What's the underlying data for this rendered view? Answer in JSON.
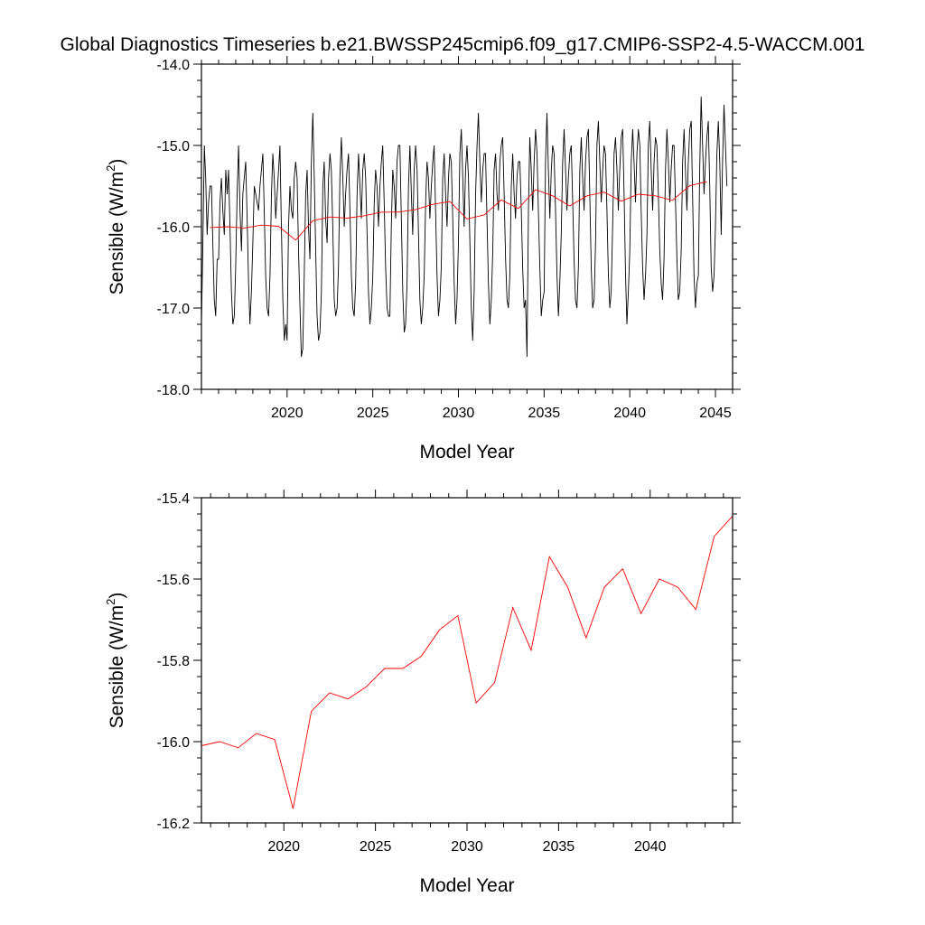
{
  "figure": {
    "title": "Global Diagnostics Timeseries b.e21.BWSSP245cmip6.f09_g17.CMIP6-SSP2-4.5-WACCM.001"
  },
  "chart_data": [
    {
      "type": "line",
      "xlabel": "Model Year",
      "ylabel": {
        "prefix": "Sensible (W/m",
        "superscript": "2",
        "suffix": ")"
      },
      "xlim": [
        2015,
        2046
      ],
      "ylim": [
        -18.0,
        -14.0
      ],
      "x_ticks": [
        "2020",
        "2025",
        "2030",
        "2035",
        "2040",
        "2045"
      ],
      "y_ticks": [
        "-18.0",
        "-17.0",
        "-16.0",
        "-15.0",
        "-14.0"
      ],
      "grid": false,
      "series": [
        {
          "color": "#000000",
          "start_year": 2015,
          "step": "monthly",
          "values": [
            -17.2,
            -16.2,
            -15.0,
            -15.4,
            -16.1,
            -15.7,
            -15.5,
            -15.5,
            -16.2,
            -16.9,
            -17.1,
            -16.4,
            -16.4,
            -15.7,
            -15.4,
            -15.8,
            -16.1,
            -15.3,
            -15.6,
            -15.3,
            -16.0,
            -16.8,
            -17.2,
            -17.1,
            -16.5,
            -15.6,
            -15.0,
            -15.8,
            -16.3,
            -15.6,
            -15.4,
            -15.2,
            -15.9,
            -16.7,
            -17.2,
            -16.8,
            -16.2,
            -15.5,
            -15.6,
            -15.7,
            -15.8,
            -15.5,
            -15.3,
            -15.1,
            -15.8,
            -16.6,
            -17.0,
            -17.1,
            -16.6,
            -15.6,
            -15.1,
            -15.4,
            -15.9,
            -15.6,
            -15.3,
            -15.0,
            -16.0,
            -16.9,
            -17.4,
            -17.2,
            -17.4,
            -16.0,
            -15.5,
            -15.8,
            -15.9,
            -15.4,
            -15.2,
            -15.4,
            -16.3,
            -17.0,
            -17.6,
            -17.5,
            -16.6,
            -15.6,
            -15.3,
            -16.0,
            -16.4,
            -15.2,
            -14.6,
            -15.4,
            -16.3,
            -17.1,
            -17.4,
            -17.3,
            -16.8,
            -15.5,
            -15.2,
            -15.9,
            -16.2,
            -15.4,
            -15.1,
            -15.3,
            -16.0,
            -16.9,
            -17.1,
            -17.0,
            -16.5,
            -15.4,
            -14.9,
            -15.4,
            -16.0,
            -15.6,
            -15.3,
            -15.1,
            -15.8,
            -16.6,
            -17.0,
            -17.1,
            -16.7,
            -15.6,
            -15.1,
            -15.5,
            -15.9,
            -15.3,
            -15.1,
            -15.4,
            -16.1,
            -16.8,
            -17.2,
            -17.0,
            -16.6,
            -15.7,
            -15.3,
            -15.5,
            -16.0,
            -15.5,
            -15.2,
            -15.0,
            -15.7,
            -16.5,
            -17.0,
            -17.1,
            -17.1,
            -16.0,
            -15.3,
            -15.5,
            -15.9,
            -15.2,
            -15.0,
            -15.0,
            -15.9,
            -16.8,
            -17.3,
            -17.2,
            -16.7,
            -15.5,
            -15.0,
            -15.6,
            -16.1,
            -15.3,
            -15.0,
            -15.3,
            -16.1,
            -16.9,
            -17.2,
            -17.0,
            -16.6,
            -15.7,
            -15.2,
            -15.4,
            -15.9,
            -15.5,
            -15.2,
            -15.0,
            -15.8,
            -16.6,
            -17.1,
            -16.9,
            -16.5,
            -15.4,
            -15.1,
            -15.6,
            -16.0,
            -15.4,
            -15.1,
            -15.2,
            -15.9,
            -16.7,
            -17.2,
            -16.9,
            -16.2,
            -15.1,
            -14.8,
            -15.4,
            -16.0,
            -15.3,
            -15.0,
            -15.4,
            -16.2,
            -17.0,
            -17.4,
            -16.8,
            -15.6,
            -15.0,
            -14.6,
            -15.2,
            -15.7,
            -15.3,
            -15.1,
            -15.1,
            -15.9,
            -16.7,
            -17.2,
            -16.9,
            -16.3,
            -15.3,
            -15.1,
            -15.6,
            -15.8,
            -15.2,
            -15.0,
            -14.9,
            -15.6,
            -16.4,
            -16.9,
            -17.0,
            -16.6,
            -15.5,
            -15.1,
            -15.6,
            -15.9,
            -15.4,
            -15.2,
            -15.2,
            -15.8,
            -16.5,
            -17.0,
            -16.9,
            -17.6,
            -15.8,
            -14.9,
            -15.3,
            -15.8,
            -15.2,
            -14.8,
            -15.1,
            -15.8,
            -16.5,
            -17.1,
            -16.9,
            -16.8,
            -15.2,
            -14.6,
            -15.3,
            -15.9,
            -15.3,
            -15.0,
            -15.1,
            -15.8,
            -16.6,
            -17.1,
            -16.7,
            -16.1,
            -15.2,
            -14.8,
            -15.3,
            -15.8,
            -15.4,
            -15.1,
            -15.0,
            -15.7,
            -16.4,
            -16.9,
            -17.0,
            -16.5,
            -15.3,
            -14.9,
            -15.4,
            -15.8,
            -15.2,
            -14.9,
            -14.8,
            -15.6,
            -16.5,
            -17.0,
            -16.9,
            -16.2,
            -15.0,
            -14.7,
            -15.2,
            -15.7,
            -15.3,
            -15.0,
            -15.1,
            -15.8,
            -16.6,
            -17.0,
            -16.8,
            -16.0,
            -15.1,
            -14.9,
            -15.3,
            -15.8,
            -15.3,
            -14.9,
            -14.8,
            -15.6,
            -16.6,
            -17.2,
            -16.8,
            -16.3,
            -15.2,
            -14.8,
            -15.2,
            -15.7,
            -15.1,
            -14.8,
            -15.0,
            -15.8,
            -16.5,
            -16.9,
            -16.6,
            -16.1,
            -15.0,
            -14.7,
            -15.3,
            -15.8,
            -15.2,
            -14.9,
            -15.0,
            -15.6,
            -16.3,
            -16.7,
            -16.9,
            -16.4,
            -15.3,
            -14.8,
            -15.2,
            -15.7,
            -15.3,
            -15.0,
            -15.0,
            -15.7,
            -16.4,
            -16.9,
            -16.8,
            -16.3,
            -15.2,
            -14.8,
            -15.3,
            -15.8,
            -15.2,
            -14.8,
            -14.7,
            -15.6,
            -16.6,
            -17.0,
            -16.7,
            -16.6,
            -15.3,
            -14.4,
            -15.0,
            -15.6,
            -15.2,
            -14.9,
            -14.7,
            -15.5,
            -16.5,
            -16.8,
            -16.6,
            -16.0,
            -15.1,
            -14.7,
            -15.2,
            -16.1,
            -15.2,
            -14.5,
            -15.0,
            -15.5
          ]
        },
        {
          "color": "#ff0000",
          "step": "annual",
          "x": [
            2015.5,
            2016.5,
            2017.5,
            2018.5,
            2019.5,
            2020.5,
            2021.5,
            2022.5,
            2023.5,
            2024.5,
            2025.5,
            2026.5,
            2027.5,
            2028.5,
            2029.5,
            2030.5,
            2031.5,
            2032.5,
            2033.5,
            2034.5,
            2035.5,
            2036.5,
            2037.5,
            2038.5,
            2039.5,
            2040.5,
            2041.5,
            2042.5,
            2043.5,
            2044.5
          ],
          "values": [
            -16.01,
            -16.0,
            -16.015,
            -15.98,
            -15.995,
            -16.165,
            -15.925,
            -15.88,
            -15.895,
            -15.865,
            -15.82,
            -15.82,
            -15.79,
            -15.725,
            -15.69,
            -15.905,
            -15.855,
            -15.67,
            -15.775,
            -15.545,
            -15.62,
            -15.745,
            -15.62,
            -15.575,
            -15.685,
            -15.6,
            -15.62,
            -15.675,
            -15.495,
            -15.445
          ]
        }
      ]
    },
    {
      "type": "line",
      "xlabel": "Model Year",
      "ylabel": {
        "prefix": "Sensible (W/m",
        "superscript": "2",
        "suffix": ")"
      },
      "xlim": [
        2015.5,
        2044.5
      ],
      "ylim": [
        -16.2,
        -15.4
      ],
      "x_ticks": [
        "2020",
        "2025",
        "2030",
        "2035",
        "2040"
      ],
      "y_ticks": [
        "-16.2",
        "-16.0",
        "-15.8",
        "-15.6",
        "-15.4"
      ],
      "grid": false,
      "series": [
        {
          "color": "#ff0000",
          "x": [
            2015.5,
            2016.5,
            2017.5,
            2018.5,
            2019.5,
            2020.5,
            2021.5,
            2022.5,
            2023.5,
            2024.5,
            2025.5,
            2026.5,
            2027.5,
            2028.5,
            2029.5,
            2030.5,
            2031.5,
            2032.5,
            2033.5,
            2034.5,
            2035.5,
            2036.5,
            2037.5,
            2038.5,
            2039.5,
            2040.5,
            2041.5,
            2042.5,
            2043.5,
            2044.5
          ],
          "values": [
            -16.01,
            -16.0,
            -16.015,
            -15.98,
            -15.995,
            -16.165,
            -15.925,
            -15.88,
            -15.895,
            -15.865,
            -15.82,
            -15.82,
            -15.79,
            -15.725,
            -15.69,
            -15.905,
            -15.855,
            -15.67,
            -15.775,
            -15.545,
            -15.62,
            -15.745,
            -15.62,
            -15.575,
            -15.685,
            -15.6,
            -15.62,
            -15.675,
            -15.495,
            -15.445
          ]
        }
      ]
    }
  ]
}
